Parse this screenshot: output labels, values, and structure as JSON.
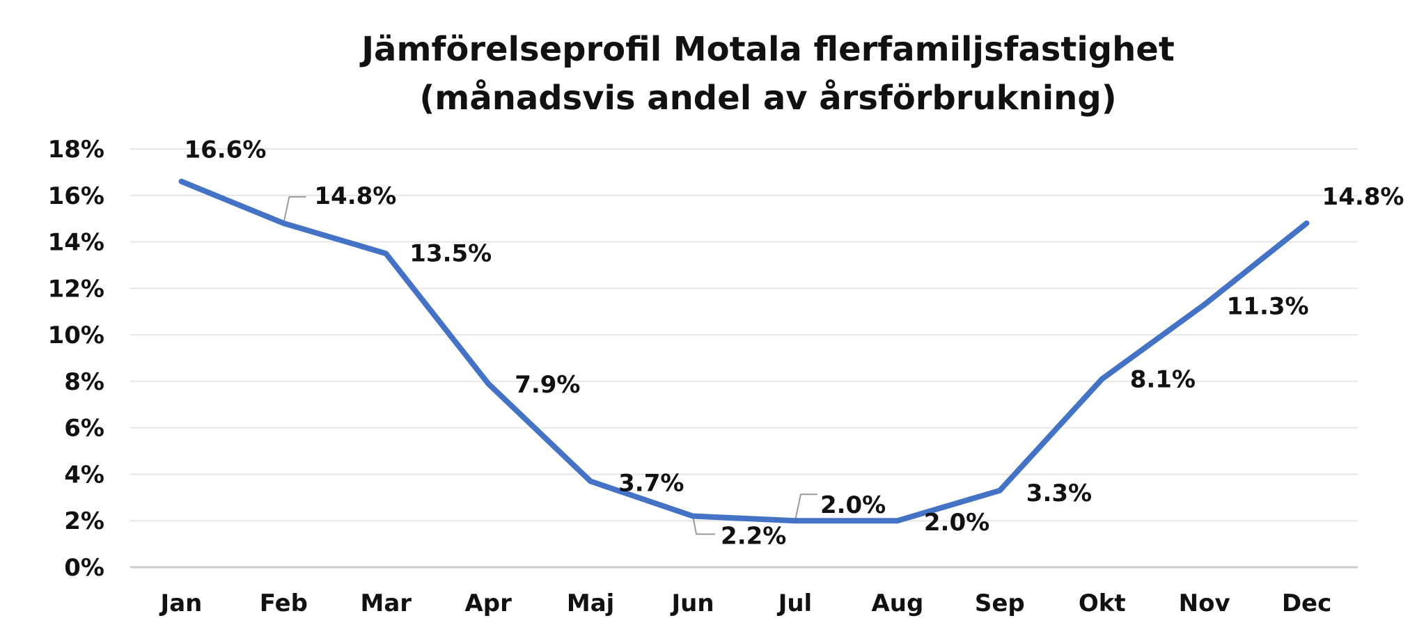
{
  "chart_data": {
    "type": "line",
    "title_lines": [
      "Jämförelseprofil Motala flerfamiljsfastighet",
      "(månadsvis andel av årsförbrukning)"
    ],
    "categories": [
      "Jan",
      "Feb",
      "Mar",
      "Apr",
      "Maj",
      "Jun",
      "Jul",
      "Aug",
      "Sep",
      "Okt",
      "Nov",
      "Dec"
    ],
    "values": [
      16.6,
      14.8,
      13.5,
      7.9,
      3.7,
      2.2,
      2.0,
      2.0,
      3.3,
      8.1,
      11.3,
      14.8
    ],
    "data_labels": [
      "16.6%",
      "14.8%",
      "13.5%",
      "7.9%",
      "3.7%",
      "2.2%",
      "2.0%",
      "2.0%",
      "3.3%",
      "8.1%",
      "11.3%",
      "14.8%"
    ],
    "y_ticks": [
      0,
      2,
      4,
      6,
      8,
      10,
      12,
      14,
      16,
      18
    ],
    "y_tick_labels": [
      "0%",
      "2%",
      "4%",
      "6%",
      "8%",
      "10%",
      "12%",
      "14%",
      "16%",
      "18%"
    ],
    "ylim": [
      0,
      18
    ],
    "grid": true,
    "legend": "none",
    "line_color": "#4472C4"
  }
}
